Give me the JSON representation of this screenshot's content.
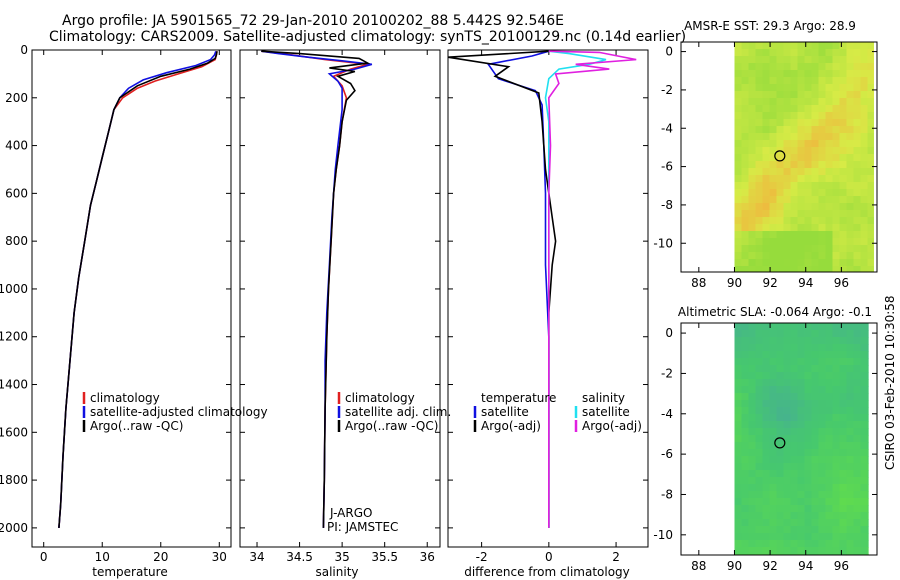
{
  "header": {
    "line1": "Argo profile: JA 5901565_72 29-Jan-2010 20100202_88 5.442S 92.546E",
    "line2": "Climatology: CARS2009. Satellite-adjusted climatology: synTS_20100129.nc (0.14d earlier)"
  },
  "footer": {
    "credit": "CSIRO 03-Feb-2010 10:30:58"
  },
  "colors": {
    "clim": "#e02020",
    "sat": "#1010e0",
    "argo": "#000000",
    "sat_s": "#20e0f0",
    "argo_s": "#e020e0"
  },
  "depth_axis": {
    "ticks": [
      0,
      200,
      400,
      600,
      800,
      1000,
      1200,
      1400,
      1600,
      1800,
      2000
    ],
    "range": [
      0,
      2080
    ]
  },
  "chart_data": [
    {
      "id": "temperature",
      "type": "line",
      "xlabel": "temperature",
      "xlim": [
        -2,
        32
      ],
      "xticks": [
        0,
        10,
        20,
        30
      ],
      "ylim": [
        0,
        2080
      ],
      "legend": [
        "climatology",
        "satellite-adjusted climatology",
        "Argo(..raw -QC)"
      ],
      "series": [
        {
          "name": "climatology",
          "color": "clim",
          "points": [
            [
              29.6,
              5
            ],
            [
              29.5,
              20
            ],
            [
              29.3,
              40
            ],
            [
              27,
              70
            ],
            [
              23,
              100
            ],
            [
              19,
              130
            ],
            [
              16,
              160
            ],
            [
              13.5,
              200
            ],
            [
              12,
              250
            ],
            [
              11,
              350
            ],
            [
              10,
              450
            ],
            [
              9,
              550
            ],
            [
              8,
              650
            ],
            [
              7,
              800
            ],
            [
              6,
              950
            ],
            [
              5.2,
              1100
            ],
            [
              4.5,
              1300
            ],
            [
              3.8,
              1500
            ],
            [
              3.3,
              1700
            ],
            [
              2.9,
              1900
            ],
            [
              2.6,
              2000
            ]
          ]
        },
        {
          "name": "satellite-adjusted",
          "color": "sat",
          "points": [
            [
              29.4,
              5
            ],
            [
              29.2,
              20
            ],
            [
              28.5,
              40
            ],
            [
              26,
              65
            ],
            [
              21,
              95
            ],
            [
              17,
              125
            ],
            [
              14.5,
              160
            ],
            [
              13,
              200
            ],
            [
              12,
              250
            ],
            [
              11,
              350
            ],
            [
              10,
              450
            ],
            [
              9,
              550
            ],
            [
              8,
              650
            ],
            [
              7,
              800
            ],
            [
              6,
              950
            ],
            [
              5.2,
              1100
            ],
            [
              4.5,
              1300
            ],
            [
              3.8,
              1500
            ],
            [
              3.3,
              1700
            ],
            [
              2.9,
              1900
            ],
            [
              2.6,
              2000
            ]
          ]
        },
        {
          "name": "Argo",
          "color": "argo",
          "points": [
            [
              29.6,
              5
            ],
            [
              29.5,
              20
            ],
            [
              29.3,
              35
            ],
            [
              28,
              55
            ],
            [
              25,
              80
            ],
            [
              20,
              110
            ],
            [
              16,
              150
            ],
            [
              13,
              200
            ],
            [
              12,
              250
            ],
            [
              11,
              350
            ],
            [
              10,
              450
            ],
            [
              9,
              550
            ],
            [
              8,
              650
            ],
            [
              7,
              800
            ],
            [
              6,
              950
            ],
            [
              5.2,
              1100
            ],
            [
              4.5,
              1300
            ],
            [
              3.8,
              1500
            ],
            [
              3.3,
              1700
            ],
            [
              2.9,
              1900
            ],
            [
              2.6,
              2000
            ]
          ]
        }
      ]
    },
    {
      "id": "salinity",
      "type": "line",
      "xlabel": "salinity",
      "xlim": [
        33.8,
        36.15
      ],
      "xticks": [
        34,
        34.5,
        35,
        35.5,
        36
      ],
      "ylim": [
        0,
        2080
      ],
      "legend": [
        "climatology",
        "satellite adj. clim.",
        "Argo(..raw -QC)"
      ],
      "annotations": [
        "J-ARGO",
        "PI: JAMSTEC"
      ],
      "series": [
        {
          "name": "climatology",
          "color": "clim",
          "points": [
            [
              34.05,
              5
            ],
            [
              34.4,
              20
            ],
            [
              34.8,
              40
            ],
            [
              35.3,
              60
            ],
            [
              35.1,
              80
            ],
            [
              34.9,
              110
            ],
            [
              35.0,
              150
            ],
            [
              35.05,
              200
            ],
            [
              35.0,
              300
            ],
            [
              34.97,
              400
            ],
            [
              34.93,
              500
            ],
            [
              34.9,
              600
            ],
            [
              34.87,
              800
            ],
            [
              34.84,
              1000
            ],
            [
              34.82,
              1200
            ],
            [
              34.8,
              1500
            ],
            [
              34.79,
              1800
            ],
            [
              34.78,
              2000
            ]
          ]
        },
        {
          "name": "satellite adj.",
          "color": "sat",
          "points": [
            [
              34.05,
              5
            ],
            [
              34.25,
              15
            ],
            [
              34.6,
              30
            ],
            [
              35.0,
              45
            ],
            [
              35.35,
              60
            ],
            [
              35.15,
              80
            ],
            [
              34.85,
              100
            ],
            [
              34.95,
              130
            ],
            [
              35.0,
              160
            ],
            [
              35.0,
              250
            ],
            [
              34.95,
              400
            ],
            [
              34.92,
              500
            ],
            [
              34.88,
              700
            ],
            [
              34.85,
              900
            ],
            [
              34.82,
              1100
            ],
            [
              34.8,
              1300
            ],
            [
              34.8,
              1500
            ],
            [
              34.79,
              1800
            ],
            [
              34.78,
              2000
            ]
          ]
        },
        {
          "name": "Argo",
          "color": "argo",
          "points": [
            [
              34.05,
              5
            ],
            [
              34.5,
              15
            ],
            [
              35.2,
              35
            ],
            [
              35.3,
              55
            ],
            [
              34.85,
              75
            ],
            [
              35.15,
              90
            ],
            [
              34.95,
              110
            ],
            [
              35.1,
              140
            ],
            [
              35.15,
              170
            ],
            [
              35.05,
              210
            ],
            [
              35.0,
              300
            ],
            [
              34.97,
              400
            ],
            [
              34.93,
              500
            ],
            [
              34.9,
              600
            ],
            [
              34.87,
              800
            ],
            [
              34.84,
              1000
            ],
            [
              34.82,
              1200
            ],
            [
              34.8,
              1500
            ],
            [
              34.79,
              1800
            ],
            [
              34.78,
              2000
            ]
          ]
        }
      ]
    },
    {
      "id": "difference",
      "type": "line",
      "xlabel": "difference from climatology",
      "xlim": [
        -3.0,
        2.95
      ],
      "xticks": [
        -2,
        0,
        2
      ],
      "ylim": [
        0,
        2080
      ],
      "legend_titles": [
        "temperature",
        "salinity"
      ],
      "legend": [
        "satellite",
        "Argo(-adj)",
        "satellite",
        "Argo(-adj)"
      ],
      "series": [
        {
          "name": "temp satellite",
          "color": "sat",
          "points": [
            [
              0,
              5
            ],
            [
              -0.5,
              25
            ],
            [
              -1.8,
              60
            ],
            [
              -1.5,
              120
            ],
            [
              -0.4,
              170
            ],
            [
              -0.2,
              230
            ],
            [
              -0.15,
              400
            ],
            [
              -0.1,
              600
            ],
            [
              -0.1,
              900
            ],
            [
              0,
              1200
            ],
            [
              0,
              2000
            ]
          ]
        },
        {
          "name": "temp Argo",
          "color": "argo",
          "points": [
            [
              0,
              5
            ],
            [
              -3.0,
              30
            ],
            [
              -1.2,
              70
            ],
            [
              -1.6,
              110
            ],
            [
              -0.3,
              180
            ],
            [
              -0.2,
              300
            ],
            [
              -0.15,
              400
            ],
            [
              -0.1,
              500
            ],
            [
              0.1,
              700
            ],
            [
              0.2,
              800
            ],
            [
              0.1,
              900
            ],
            [
              0,
              1100
            ],
            [
              0,
              2000
            ]
          ]
        },
        {
          "name": "sal satellite",
          "color": "sat_s",
          "points": [
            [
              0,
              5
            ],
            [
              0.6,
              15
            ],
            [
              1.7,
              40
            ],
            [
              1.2,
              60
            ],
            [
              0.3,
              80
            ],
            [
              0,
              120
            ],
            [
              -0.1,
              200
            ],
            [
              0,
              300
            ],
            [
              0,
              2000
            ]
          ]
        },
        {
          "name": "sal Argo",
          "color": "argo_s",
          "points": [
            [
              0,
              5
            ],
            [
              1.5,
              10
            ],
            [
              2.6,
              40
            ],
            [
              0.8,
              60
            ],
            [
              1.8,
              80
            ],
            [
              0.2,
              100
            ],
            [
              0.3,
              140
            ],
            [
              0,
              200
            ],
            [
              0.05,
              400
            ],
            [
              0,
              600
            ],
            [
              0,
              2000
            ]
          ]
        }
      ]
    },
    {
      "id": "sst_map",
      "type": "heatmap",
      "title": "AMSR-E SST: 29.3   Argo: 28.9",
      "xticks": [
        88,
        90,
        92,
        94,
        96
      ],
      "yticks": [
        0,
        -2,
        -4,
        -6,
        -8,
        -10
      ],
      "xlim": [
        87,
        98
      ],
      "ylim": [
        -11.5,
        0.5
      ],
      "data_xlim": [
        90,
        97.8
      ],
      "argo_position": [
        92.546,
        -5.442
      ],
      "value": 29.3,
      "argo_value": 28.9
    },
    {
      "id": "sla_map",
      "type": "heatmap",
      "title": "Altimetric SLA: -0.064  Argo: -0.1",
      "xticks": [
        88,
        90,
        92,
        94,
        96
      ],
      "yticks": [
        0,
        -2,
        -4,
        -6,
        -8,
        -10
      ],
      "xlim": [
        87,
        98
      ],
      "ylim": [
        -11,
        0.5
      ],
      "data_xlim": [
        90,
        97.5
      ],
      "argo_position": [
        92.546,
        -5.442
      ],
      "value": -0.064,
      "argo_value": -0.1
    }
  ]
}
